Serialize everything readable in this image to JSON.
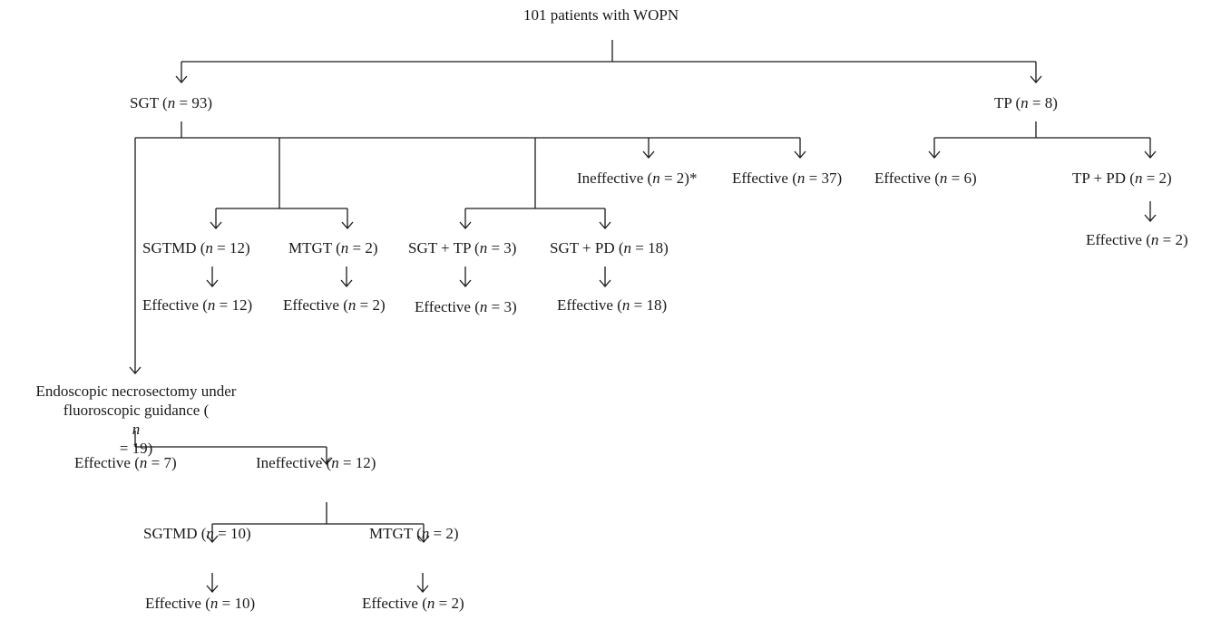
{
  "nodes": {
    "root": "101 patients with WOPN",
    "sgt": {
      "pre": "SGT (",
      "n": "n",
      "post": " = 93)"
    },
    "tp": {
      "pre": "TP (",
      "n": "n",
      "post": " = 8)"
    },
    "ineffective_sgt": {
      "pre": "Ineffective (",
      "n": "n",
      "post": " = 2)*"
    },
    "effective_sgt": {
      "pre": "Effective (",
      "n": "n",
      "post": " = 37)"
    },
    "effective_tp": {
      "pre": "Effective (",
      "n": "n",
      "post": " = 6)"
    },
    "tp_pd": {
      "pre": "TP + PD (",
      "n": "n",
      "post": " = 2)"
    },
    "effective_tp_pd": {
      "pre": "Effective (",
      "n": "n",
      "post": " = 2)"
    },
    "sgtmd": {
      "pre": "SGTMD (",
      "n": "n",
      "post": " = 12)"
    },
    "mtgt": {
      "pre": "MTGT (",
      "n": "n",
      "post": " = 2)"
    },
    "sgt_tp": {
      "pre": "SGT + TP (",
      "n": "n",
      "post": " = 3)"
    },
    "sgt_pd": {
      "pre": "SGT + PD (",
      "n": "n",
      "post": " = 18)"
    },
    "effective_sgtmd": {
      "pre": "Effective (",
      "n": "n",
      "post": " = 12)"
    },
    "effective_mtgt": {
      "pre": "Effective (",
      "n": "n",
      "post": " = 2)"
    },
    "effective_sgt_tp": {
      "pre": "Effective (",
      "n": "n",
      "post": " = 3)"
    },
    "effective_sgt_pd": {
      "pre": "Effective (",
      "n": "n",
      "post": " = 18)"
    },
    "necrosectomy": {
      "line1": "Endoscopic necrosectomy under",
      "line2_pre": "fluoroscopic guidance (",
      "n": "n",
      "line2_post": " = 19)"
    },
    "effective_nec": {
      "pre": "Effective (",
      "n": "n",
      "post": " = 7)"
    },
    "ineffective_nec": {
      "pre": "Ineffective (",
      "n": "n",
      "post": " = 12)"
    },
    "sgtmd_nec": {
      "pre": "SGTMD (",
      "n": "n",
      "post": " = 10)"
    },
    "mtgt_nec": {
      "pre": "MTGT (",
      "n": "n",
      "post": " = 2)"
    },
    "effective_sgtmd_nec": {
      "pre": "Effective (",
      "n": "n",
      "post": " = 10)"
    },
    "effective_mtgt_nec": {
      "pre": "Effective (",
      "n": "n",
      "post": " = 2)"
    }
  },
  "colors": {
    "line": "#1a1a1a",
    "text": "#1a1a1a"
  }
}
